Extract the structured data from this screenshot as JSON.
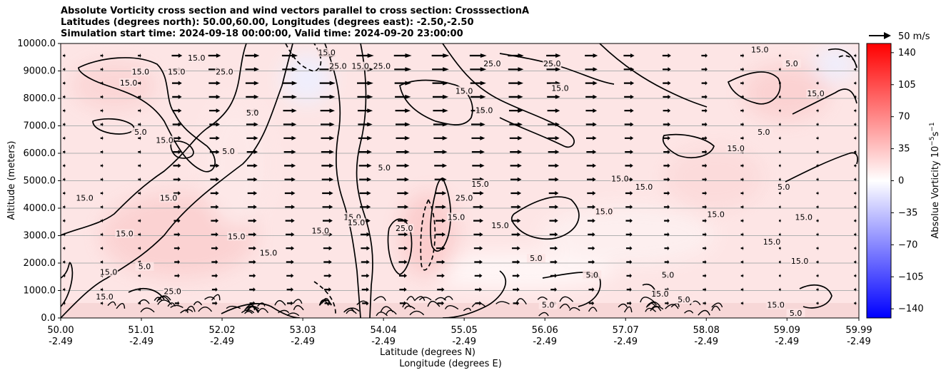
{
  "title_lines": [
    "Absolute Vorticity cross section and wind vectors parallel to cross section: CrosssectionA",
    "Latitudes (degrees north): 50.00,60.00, Longitudes (degrees east): -2.50,-2.50",
    "Simulation start time: 2024-09-18 00:00:00, Valid time: 2024-09-20 23:00:00"
  ],
  "chart_data": {
    "type": "heatmap",
    "subtype": "cross-section contour with wind vectors",
    "xlabel": "Latitude (degrees N)",
    "xlabel2": "Longitude (degrees E)",
    "ylabel": "Altitude (meters)",
    "xlim": [
      50.0,
      59.99
    ],
    "ylim": [
      0,
      10000
    ],
    "grid": "horizontal",
    "x_ticks": [
      {
        "lat": "50.00",
        "lon": "-2.49",
        "value": 50.0
      },
      {
        "lat": "51.01",
        "lon": "-2.49",
        "value": 51.01
      },
      {
        "lat": "52.02",
        "lon": "-2.49",
        "value": 52.02
      },
      {
        "lat": "53.03",
        "lon": "-2.49",
        "value": 53.03
      },
      {
        "lat": "54.04",
        "lon": "-2.49",
        "value": 54.04
      },
      {
        "lat": "55.05",
        "lon": "-2.49",
        "value": 55.05
      },
      {
        "lat": "56.06",
        "lon": "-2.49",
        "value": 56.06
      },
      {
        "lat": "57.07",
        "lon": "-2.49",
        "value": 57.07
      },
      {
        "lat": "58.08",
        "lon": "-2.49",
        "value": 58.08
      },
      {
        "lat": "59.09",
        "lon": "-2.49",
        "value": 59.09
      },
      {
        "lat": "59.99",
        "lon": "-2.49",
        "value": 59.99
      }
    ],
    "y_ticks": [
      "0.0",
      "1000.0",
      "2000.0",
      "3000.0",
      "4000.0",
      "5000.0",
      "6000.0",
      "7000.0",
      "8000.0",
      "9000.0",
      "10000.0"
    ],
    "colorbar": {
      "label": "Absolue Vorticity 10^-5 s^-1",
      "label_main": "Absolue Vorticity 10",
      "label_exp": "−5",
      "label_unit": "s",
      "label_unit_exp": "−1",
      "range": [
        -150,
        150
      ],
      "ticks": [
        "140",
        "105",
        "70",
        "35",
        "0",
        "−35",
        "−70",
        "−105",
        "−140"
      ],
      "tick_values": [
        140,
        105,
        70,
        35,
        0,
        -35,
        -70,
        -105,
        -140
      ],
      "colormap": "bwr"
    },
    "quiver_key": {
      "label": "50 m/s",
      "magnitude": 50
    },
    "contour_levels": [
      5.0,
      15.0,
      25.0
    ],
    "contour_labels": [
      {
        "text": "15.0",
        "lat": 50.85,
        "alt": 8500
      },
      {
        "text": "15.0",
        "lat": 51.0,
        "alt": 8900
      },
      {
        "text": "15.0",
        "lat": 51.45,
        "alt": 8900
      },
      {
        "text": "15.0",
        "lat": 51.7,
        "alt": 9400
      },
      {
        "text": "25.0",
        "lat": 52.05,
        "alt": 8900
      },
      {
        "text": "5.0",
        "lat": 52.4,
        "alt": 7400
      },
      {
        "text": "5.0",
        "lat": 51.0,
        "alt": 6700
      },
      {
        "text": "5.0",
        "lat": 52.1,
        "alt": 6000
      },
      {
        "text": "15.0",
        "lat": 51.3,
        "alt": 6400
      },
      {
        "text": "15.0",
        "lat": 53.33,
        "alt": 9600
      },
      {
        "text": "25.0",
        "lat": 53.47,
        "alt": 9100
      },
      {
        "text": "15.0",
        "lat": 53.75,
        "alt": 9100
      },
      {
        "text": "25.0",
        "lat": 54.02,
        "alt": 9100
      },
      {
        "text": "25.0",
        "lat": 55.4,
        "alt": 9200
      },
      {
        "text": "25.0",
        "lat": 56.15,
        "alt": 9200
      },
      {
        "text": "15.0",
        "lat": 55.05,
        "alt": 8200
      },
      {
        "text": "15.0",
        "lat": 55.3,
        "alt": 7500
      },
      {
        "text": "15.0",
        "lat": 56.25,
        "alt": 8300
      },
      {
        "text": "15.0",
        "lat": 58.75,
        "alt": 9700
      },
      {
        "text": "5.0",
        "lat": 59.15,
        "alt": 9200
      },
      {
        "text": "15.0",
        "lat": 59.45,
        "alt": 8100
      },
      {
        "text": "5.0",
        "lat": 54.05,
        "alt": 5400
      },
      {
        "text": "15.0",
        "lat": 57.0,
        "alt": 5000
      },
      {
        "text": "15.0",
        "lat": 57.3,
        "alt": 4700
      },
      {
        "text": "15.0",
        "lat": 58.45,
        "alt": 6100
      },
      {
        "text": "5.0",
        "lat": 58.8,
        "alt": 6700
      },
      {
        "text": "5.0",
        "lat": 59.05,
        "alt": 4700
      },
      {
        "text": "15.0",
        "lat": 59.3,
        "alt": 3600
      },
      {
        "text": "15.0",
        "lat": 50.3,
        "alt": 4300
      },
      {
        "text": "15.0",
        "lat": 50.8,
        "alt": 3000
      },
      {
        "text": "15.0",
        "lat": 51.35,
        "alt": 4300
      },
      {
        "text": "15.0",
        "lat": 52.2,
        "alt": 2900
      },
      {
        "text": "15.0",
        "lat": 53.25,
        "alt": 3100
      },
      {
        "text": "15.0",
        "lat": 53.65,
        "alt": 3600
      },
      {
        "text": "15.0",
        "lat": 53.7,
        "alt": 3400
      },
      {
        "text": "25.0",
        "lat": 54.3,
        "alt": 3200
      },
      {
        "text": "15.0",
        "lat": 54.95,
        "alt": 3600
      },
      {
        "text": "15.0",
        "lat": 55.25,
        "alt": 4800
      },
      {
        "text": "25.0",
        "lat": 55.05,
        "alt": 4300
      },
      {
        "text": "15.0",
        "lat": 55.5,
        "alt": 3300
      },
      {
        "text": "15.0",
        "lat": 56.8,
        "alt": 3800
      },
      {
        "text": "15.0",
        "lat": 58.2,
        "alt": 3700
      },
      {
        "text": "15.0",
        "lat": 58.9,
        "alt": 2700
      },
      {
        "text": "15.0",
        "lat": 59.25,
        "alt": 2000
      },
      {
        "text": "15.0",
        "lat": 52.6,
        "alt": 2300
      },
      {
        "text": "5.0",
        "lat": 51.05,
        "alt": 1800
      },
      {
        "text": "15.0",
        "lat": 50.6,
        "alt": 1600
      },
      {
        "text": "25.0",
        "lat": 51.4,
        "alt": 900
      },
      {
        "text": "15.0",
        "lat": 50.55,
        "alt": 700
      },
      {
        "text": "5.0",
        "lat": 55.95,
        "alt": 2100
      },
      {
        "text": "5.0",
        "lat": 57.6,
        "alt": 1500
      },
      {
        "text": "5.0",
        "lat": 56.65,
        "alt": 1500
      },
      {
        "text": "15.0",
        "lat": 57.5,
        "alt": 800
      },
      {
        "text": "5.0",
        "lat": 57.8,
        "alt": 600
      },
      {
        "text": "15.0",
        "lat": 58.95,
        "alt": 400
      },
      {
        "text": "5.0",
        "lat": 59.2,
        "alt": 100
      },
      {
        "text": "5.0",
        "lat": 56.1,
        "alt": 400
      }
    ],
    "series": [
      {
        "name": "vorticity_background",
        "description": "predominantly weakly positive (0 to 35) across the section, pale red"
      },
      {
        "name": "wind_vectors",
        "direction": "northward along section",
        "speed_range_ms": [
          0,
          50
        ]
      }
    ]
  }
}
